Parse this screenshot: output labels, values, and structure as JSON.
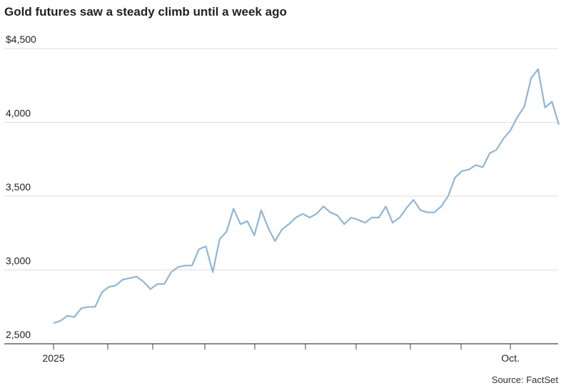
{
  "chart_data": {
    "type": "line",
    "title": "Gold futures saw a steady climb until a week ago",
    "source": "Source: FactSet",
    "categories": [
      "2025",
      null,
      null,
      null,
      null,
      null,
      null,
      null,
      null,
      null,
      null,
      null,
      null,
      null,
      null,
      null,
      null,
      null,
      null,
      null,
      null,
      null,
      null,
      null,
      null,
      null,
      null,
      null,
      null,
      null,
      null,
      null,
      null,
      null,
      null,
      null,
      null,
      null,
      null,
      null,
      null,
      null,
      null,
      null,
      null,
      null,
      null,
      null,
      null,
      null,
      null,
      null,
      null,
      null,
      null,
      null,
      null,
      null,
      null,
      null,
      null,
      null,
      null,
      null,
      null,
      null,
      "Oct.",
      null,
      null,
      null,
      null,
      null,
      null,
      null
    ],
    "values": [
      2640,
      2655,
      2690,
      2680,
      2740,
      2750,
      2750,
      2850,
      2885,
      2895,
      2935,
      2945,
      2955,
      2920,
      2870,
      2905,
      2905,
      2985,
      3020,
      3030,
      3030,
      3140,
      3160,
      2985,
      3210,
      3260,
      3415,
      3310,
      3330,
      3235,
      3405,
      3285,
      3195,
      3275,
      3310,
      3355,
      3380,
      3355,
      3380,
      3430,
      3390,
      3370,
      3310,
      3355,
      3340,
      3320,
      3355,
      3355,
      3430,
      3320,
      3355,
      3420,
      3475,
      3405,
      3390,
      3390,
      3430,
      3500,
      3625,
      3670,
      3680,
      3710,
      3695,
      3790,
      3815,
      3890,
      3945,
      4035,
      4105,
      4300,
      4360,
      4100,
      4140,
      3985
    ],
    "color": "#8fb6d6",
    "ylim": [
      2500,
      4500
    ],
    "yticks": [
      {
        "value": 2500,
        "label": "2,500"
      },
      {
        "value": 3000,
        "label": "3,000"
      },
      {
        "value": 3500,
        "label": "3,500"
      },
      {
        "value": 4000,
        "label": "4,000"
      },
      {
        "value": 4500,
        "label": "$4,500"
      }
    ],
    "grid": true
  }
}
